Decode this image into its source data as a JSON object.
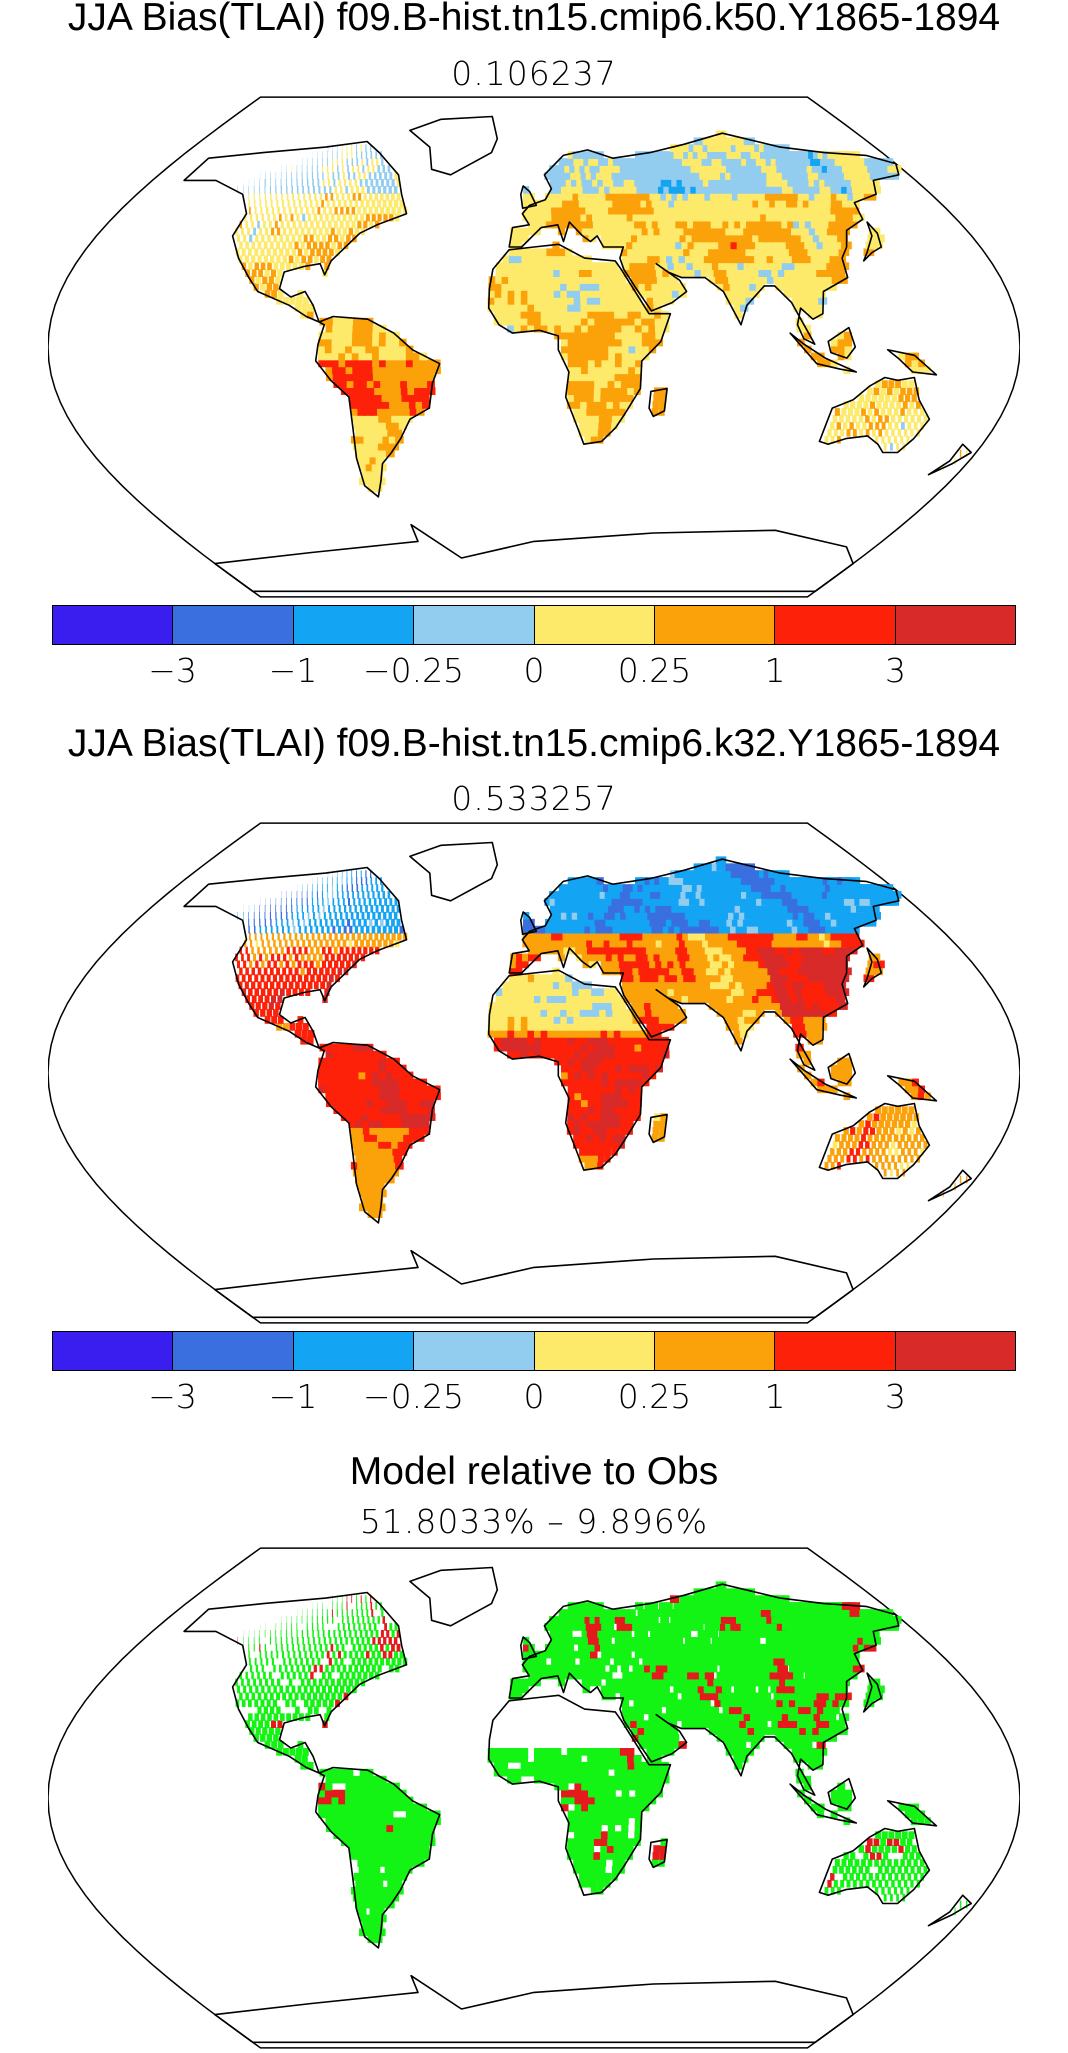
{
  "panels": [
    {
      "title": "JJA Bias(TLAI) f09.B-hist.tn15.cmip6.k50.Y1865-1894",
      "subtitle": "0.106237",
      "scheme": "bias_k50"
    },
    {
      "title": "JJA Bias(TLAI) f09.B-hist.tn15.cmip6.k32.Y1865-1894",
      "subtitle": "0.533257",
      "scheme": "bias_k32"
    },
    {
      "title": "Model relative to Obs",
      "subtitle": "51.8033% – 9.896%",
      "scheme": "relative"
    }
  ],
  "colorbar": {
    "colors": [
      "#3a1ef0",
      "#3a6fe0",
      "#14a4f4",
      "#92cdf0",
      "#fde96a",
      "#fba20a",
      "#fc2108",
      "#d82a28"
    ],
    "labels": [
      "−3",
      "−1",
      "−0.25",
      "0",
      "0.25",
      "1",
      "3"
    ]
  },
  "relative_colors": {
    "better": "#14f414",
    "worse": "#e41a1c"
  }
}
